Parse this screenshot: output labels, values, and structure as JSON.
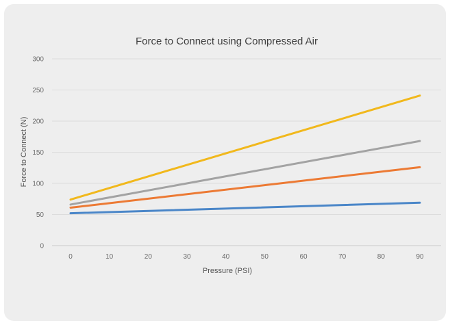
{
  "chart_data": {
    "type": "line",
    "title": "Force to Connect using Compressed Air",
    "xlabel": "Pressure (PSI)",
    "ylabel": "Force to Connect (N)",
    "x": [
      0,
      90
    ],
    "x_ticks": [
      "0",
      "10",
      "20",
      "30",
      "40",
      "50",
      "60",
      "70",
      "80",
      "90"
    ],
    "y_ticks": [
      "0",
      "50",
      "100",
      "150",
      "200",
      "250",
      "300"
    ],
    "ylim": [
      0,
      300
    ],
    "xlim": [
      0,
      90
    ],
    "grid": "horizontal",
    "legend": "none",
    "series": [
      {
        "color": "#4a86c8",
        "values": [
          52,
          69
        ]
      },
      {
        "color": "#ec7a34",
        "values": [
          61,
          126
        ]
      },
      {
        "color": "#a3a3a3",
        "values": [
          66,
          168
        ]
      },
      {
        "color": "#f1b81c",
        "values": [
          74,
          241
        ]
      }
    ]
  }
}
